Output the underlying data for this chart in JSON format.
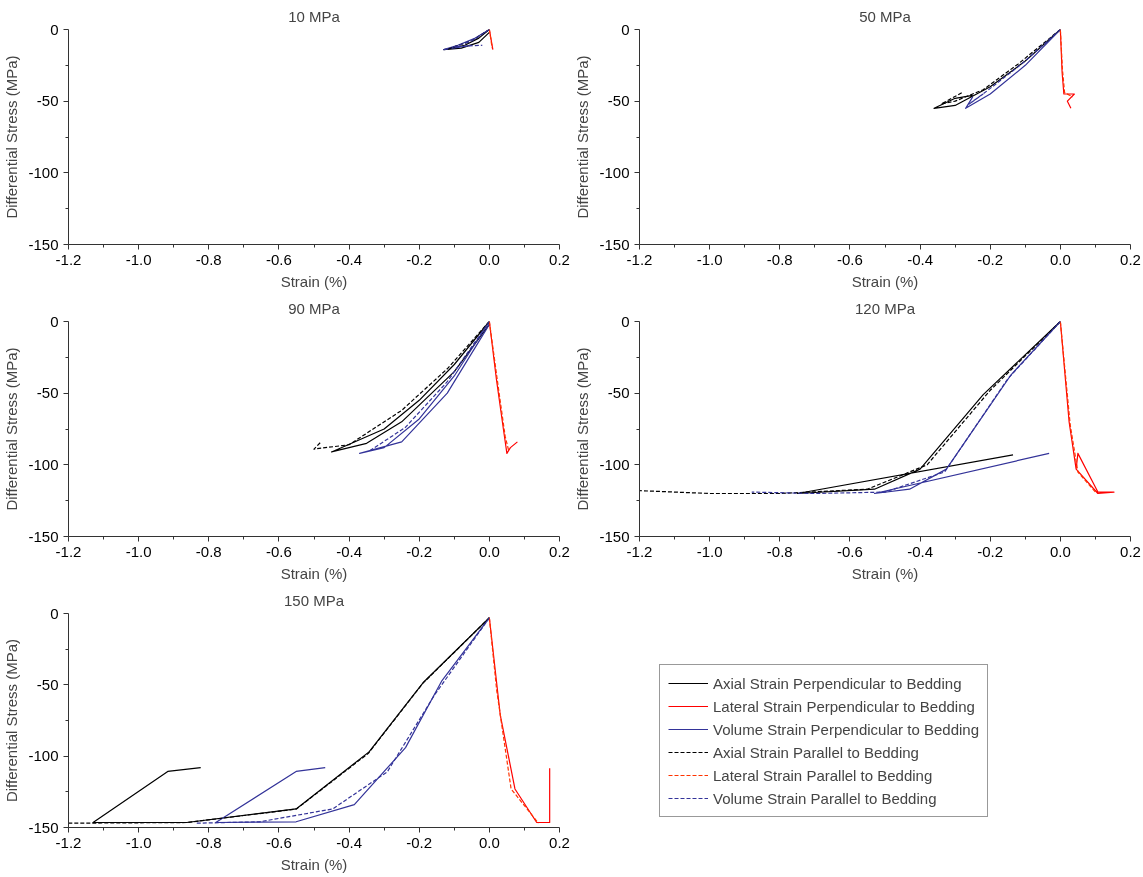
{
  "chart_data": [
    {
      "type": "line",
      "title": "10 MPa",
      "xlabel": "Strain (%)",
      "ylabel": "Differential Stress (MPa)",
      "xlim": [
        -1.2,
        0.2
      ],
      "ylim": [
        -150,
        0
      ],
      "xticks": [
        {
          "value": -1.2,
          "label": "-1.2"
        },
        {
          "value": -1.1,
          "label": null
        },
        {
          "value": -1.0,
          "label": "-1.0"
        },
        {
          "value": -0.9,
          "label": null
        },
        {
          "value": -0.8,
          "label": "-0.8"
        },
        {
          "value": -0.7,
          "label": null
        },
        {
          "value": -0.6,
          "label": "-0.6"
        },
        {
          "value": -0.5,
          "label": null
        },
        {
          "value": -0.4,
          "label": "-0.4"
        },
        {
          "value": -0.3,
          "label": null
        },
        {
          "value": -0.2,
          "label": "-0.2"
        },
        {
          "value": -0.1,
          "label": null
        },
        {
          "value": 0.0,
          "label": "0.0"
        },
        {
          "value": 0.1,
          "label": null
        },
        {
          "value": 0.2,
          "label": "0.2"
        }
      ],
      "yticks": [
        0,
        {
          "value": -25,
          "label": null
        },
        -50,
        {
          "value": -75,
          "label": null
        },
        -100,
        {
          "value": -125,
          "label": null
        },
        -150
      ],
      "grid": false,
      "marker": "none",
      "legend": false,
      "series": [
        {
          "color": "#000000",
          "line_style": "solid",
          "x": [
            0,
            -0.03,
            -0.07,
            -0.13,
            -0.08,
            -0.03,
            0
          ],
          "values": [
            0,
            -6,
            -11,
            -14,
            -13,
            -9,
            -2
          ]
        },
        {
          "color": "#ff0000",
          "line_style": "solid",
          "x": [
            0,
            0.01
          ],
          "values": [
            0,
            -14
          ]
        },
        {
          "color": "#333399",
          "line_style": "solid",
          "x": [
            0,
            -0.04,
            -0.09,
            -0.13,
            -0.05
          ],
          "values": [
            0,
            -6,
            -11,
            -14,
            -11
          ]
        },
        {
          "color": "#000000",
          "line_style": "dashed",
          "x": [
            0,
            -0.05,
            -0.1,
            -0.12
          ],
          "values": [
            0,
            -8,
            -12,
            -14
          ]
        },
        {
          "color": "#ff3300",
          "line_style": "dashed",
          "x": [
            0,
            0.008
          ],
          "values": [
            0,
            -13
          ]
        },
        {
          "color": "#333399",
          "line_style": "dashed",
          "x": [
            0,
            -0.05,
            -0.1,
            -0.02
          ],
          "values": [
            0,
            -8,
            -12,
            -11
          ]
        }
      ]
    },
    {
      "type": "line",
      "title": "50 MPa",
      "xlabel": "Strain (%)",
      "ylabel": "Differential Stress (MPa)",
      "xlim": [
        -1.2,
        0.2
      ],
      "ylim": [
        -150,
        0
      ],
      "xticks": [
        {
          "value": -1.2,
          "label": "-1.2"
        },
        {
          "value": -1.1,
          "label": null
        },
        {
          "value": -1.0,
          "label": "-1.0"
        },
        {
          "value": -0.9,
          "label": null
        },
        {
          "value": -0.8,
          "label": "-0.8"
        },
        {
          "value": -0.7,
          "label": null
        },
        {
          "value": -0.6,
          "label": "-0.6"
        },
        {
          "value": -0.5,
          "label": null
        },
        {
          "value": -0.4,
          "label": "-0.4"
        },
        {
          "value": -0.3,
          "label": null
        },
        {
          "value": -0.2,
          "label": "-0.2"
        },
        {
          "value": -0.1,
          "label": null
        },
        {
          "value": 0.0,
          "label": "0.0"
        },
        {
          "value": 0.1,
          "label": null
        },
        {
          "value": 0.2,
          "label": "0.2"
        }
      ],
      "yticks": [
        0,
        {
          "value": -25,
          "label": null
        },
        -50,
        {
          "value": -75,
          "label": null
        },
        -100,
        {
          "value": -125,
          "label": null
        },
        -150
      ],
      "grid": false,
      "marker": "none",
      "legend": false,
      "series": [
        {
          "color": "#000000",
          "line_style": "solid",
          "x": [
            0,
            -0.1,
            -0.2,
            -0.3,
            -0.36,
            -0.3,
            -0.25
          ],
          "values": [
            0,
            -22,
            -40,
            -53,
            -55,
            -48,
            -46
          ]
        },
        {
          "color": "#ff0000",
          "line_style": "solid",
          "x": [
            0,
            0.005,
            0.01,
            0.04,
            0.02,
            0.03
          ],
          "values": [
            0,
            -30,
            -45,
            -45,
            -50,
            -55
          ]
        },
        {
          "color": "#333399",
          "line_style": "solid",
          "x": [
            0,
            -0.1,
            -0.2,
            -0.27,
            -0.25
          ],
          "values": [
            0,
            -25,
            -45,
            -55,
            -47
          ]
        },
        {
          "color": "#000000",
          "line_style": "dashed",
          "x": [
            0,
            -0.12,
            -0.22,
            -0.3,
            -0.34,
            -0.28
          ],
          "values": [
            0,
            -24,
            -42,
            -50,
            -52,
            -44
          ]
        },
        {
          "color": "#ff3300",
          "line_style": "dashed",
          "x": [
            0,
            0.006,
            0.012,
            0.035
          ],
          "values": [
            0,
            -28,
            -44,
            -47
          ]
        },
        {
          "color": "#333399",
          "line_style": "dashed",
          "x": [
            0,
            -0.11,
            -0.21,
            -0.26,
            -0.22
          ],
          "values": [
            0,
            -24,
            -43,
            -52,
            -45
          ]
        }
      ]
    },
    {
      "type": "line",
      "title": "90 MPa",
      "xlabel": "Strain (%)",
      "ylabel": "Differential Stress (MPa)",
      "xlim": [
        -1.2,
        0.2
      ],
      "ylim": [
        -150,
        0
      ],
      "xticks": [
        {
          "value": -1.2,
          "label": "-1.2"
        },
        {
          "value": -1.1,
          "label": null
        },
        {
          "value": -1.0,
          "label": "-1.0"
        },
        {
          "value": -0.9,
          "label": null
        },
        {
          "value": -0.8,
          "label": "-0.8"
        },
        {
          "value": -0.7,
          "label": null
        },
        {
          "value": -0.6,
          "label": "-0.6"
        },
        {
          "value": -0.5,
          "label": null
        },
        {
          "value": -0.4,
          "label": "-0.4"
        },
        {
          "value": -0.3,
          "label": null
        },
        {
          "value": -0.2,
          "label": "-0.2"
        },
        {
          "value": -0.1,
          "label": null
        },
        {
          "value": 0.0,
          "label": "0.0"
        },
        {
          "value": 0.1,
          "label": null
        },
        {
          "value": 0.2,
          "label": "0.2"
        }
      ],
      "yticks": [
        0,
        {
          "value": -25,
          "label": null
        },
        -50,
        {
          "value": -75,
          "label": null
        },
        -100,
        {
          "value": -125,
          "label": null
        },
        -150
      ],
      "grid": false,
      "marker": "none",
      "legend": false,
      "series": [
        {
          "color": "#000000",
          "line_style": "solid",
          "x": [
            0,
            -0.1,
            -0.2,
            -0.3,
            -0.45,
            -0.35,
            -0.25,
            -0.1,
            0
          ],
          "values": [
            0,
            -30,
            -55,
            -75,
            -91,
            -85,
            -70,
            -35,
            -2
          ]
        },
        {
          "color": "#ff0000",
          "line_style": "solid",
          "x": [
            0,
            0.02,
            0.04,
            0.05,
            0.06,
            0.08
          ],
          "values": [
            0,
            -40,
            -75,
            -92,
            -88,
            -84
          ]
        },
        {
          "color": "#333399",
          "line_style": "solid",
          "x": [
            0,
            -0.1,
            -0.2,
            -0.3,
            -0.37,
            -0.25,
            -0.12,
            0
          ],
          "values": [
            0,
            -38,
            -68,
            -88,
            -92,
            -84,
            -50,
            -2
          ]
        },
        {
          "color": "#000000",
          "line_style": "dashed",
          "x": [
            0,
            -0.12,
            -0.25,
            -0.4,
            -0.5,
            -0.48
          ],
          "values": [
            0,
            -33,
            -62,
            -86,
            -89,
            -84
          ]
        },
        {
          "color": "#ff3300",
          "line_style": "dashed",
          "x": [
            0,
            0.025,
            0.045,
            0.055
          ],
          "values": [
            0,
            -45,
            -80,
            -90
          ]
        },
        {
          "color": "#333399",
          "line_style": "dashed",
          "x": [
            0,
            -0.12,
            -0.24,
            -0.34
          ],
          "values": [
            0,
            -42,
            -74,
            -90
          ]
        }
      ]
    },
    {
      "type": "line",
      "title": "120 MPa",
      "xlabel": "Strain (%)",
      "ylabel": "Differential Stress (MPa)",
      "xlim": [
        -1.2,
        0.2
      ],
      "ylim": [
        -150,
        0
      ],
      "xticks": [
        {
          "value": -1.2,
          "label": "-1.2"
        },
        {
          "value": -1.1,
          "label": null
        },
        {
          "value": -1.0,
          "label": "-1.0"
        },
        {
          "value": -0.9,
          "label": null
        },
        {
          "value": -0.8,
          "label": "-0.8"
        },
        {
          "value": -0.7,
          "label": null
        },
        {
          "value": -0.6,
          "label": "-0.6"
        },
        {
          "value": -0.5,
          "label": null
        },
        {
          "value": -0.4,
          "label": "-0.4"
        },
        {
          "value": -0.3,
          "label": null
        },
        {
          "value": -0.2,
          "label": "-0.2"
        },
        {
          "value": -0.1,
          "label": null
        },
        {
          "value": 0.0,
          "label": "0.0"
        },
        {
          "value": 0.1,
          "label": null
        },
        {
          "value": 0.2,
          "label": "0.2"
        }
      ],
      "yticks": [
        0,
        {
          "value": -25,
          "label": null
        },
        -50,
        {
          "value": -75,
          "label": null
        },
        -100,
        {
          "value": -125,
          "label": null
        },
        -150
      ],
      "grid": false,
      "marker": "none",
      "legend": false,
      "series": [
        {
          "color": "#000000",
          "line_style": "solid",
          "x": [
            0,
            -0.22,
            -0.4,
            -0.53,
            -0.75,
            -0.135
          ],
          "values": [
            0,
            -51,
            -103,
            -117,
            -120,
            -93
          ]
        },
        {
          "color": "#ff0000",
          "line_style": "solid",
          "x": [
            0,
            0.025,
            0.045,
            0.107,
            0.153,
            0.107,
            0.05,
            0.045
          ],
          "values": [
            0,
            -70,
            -103,
            -120,
            -119,
            -119,
            -92,
            -103
          ]
        },
        {
          "color": "#333399",
          "line_style": "solid",
          "x": [
            0,
            -0.14,
            -0.325,
            -0.43,
            -0.53,
            -0.032
          ],
          "values": [
            0,
            -37,
            -103,
            -117,
            -120,
            -92
          ]
        },
        {
          "color": "#000000",
          "line_style": "dashed",
          "x": [
            0,
            -0.2,
            -0.38,
            -0.55,
            -0.8,
            -1.0,
            -1.2
          ],
          "values": [
            0,
            -48,
            -100,
            -117,
            -120,
            -120,
            -118
          ]
        },
        {
          "color": "#ff3300",
          "line_style": "dashed",
          "x": [
            0,
            0.028,
            0.05,
            0.1
          ],
          "values": [
            0,
            -72,
            -105,
            -119
          ]
        },
        {
          "color": "#333399",
          "line_style": "dashed",
          "x": [
            0,
            -0.15,
            -0.33,
            -0.5,
            -0.7,
            -0.88
          ],
          "values": [
            0,
            -40,
            -105,
            -119,
            -120,
            -119
          ]
        }
      ]
    },
    {
      "type": "line",
      "title": "150 MPa",
      "xlabel": "Strain (%)",
      "ylabel": "Differential Stress (MPa)",
      "xlim": [
        -1.2,
        0.2
      ],
      "ylim": [
        -150,
        0
      ],
      "xticks": [
        {
          "value": -1.2,
          "label": "-1.2"
        },
        {
          "value": -1.1,
          "label": null
        },
        {
          "value": -1.0,
          "label": "-1.0"
        },
        {
          "value": -0.9,
          "label": null
        },
        {
          "value": -0.8,
          "label": "-0.8"
        },
        {
          "value": -0.7,
          "label": null
        },
        {
          "value": -0.6,
          "label": "-0.6"
        },
        {
          "value": -0.5,
          "label": null
        },
        {
          "value": -0.4,
          "label": "-0.4"
        },
        {
          "value": -0.3,
          "label": null
        },
        {
          "value": -0.2,
          "label": "-0.2"
        },
        {
          "value": -0.1,
          "label": null
        },
        {
          "value": 0.0,
          "label": "0.0"
        },
        {
          "value": 0.1,
          "label": null
        },
        {
          "value": 0.2,
          "label": "0.2"
        }
      ],
      "yticks": [
        0,
        {
          "value": -25,
          "label": null
        },
        -50,
        {
          "value": -75,
          "label": null
        },
        -100,
        {
          "value": -125,
          "label": null
        },
        -150
      ],
      "grid": false,
      "marker": "none",
      "legend": "right",
      "series": [
        {
          "name": "Axial Strain Perpendicular to Bedding",
          "color": "#000000",
          "line_style": "solid",
          "x": [
            0,
            -0.187,
            -0.343,
            -0.551,
            -0.863,
            -1.13,
            -0.917,
            -0.823
          ],
          "values": [
            -3,
            -48,
            -97,
            -137,
            -146.5,
            -146.5,
            -110.7,
            -108
          ]
        },
        {
          "name": "Lateral Strain Perpendicular to Bedding",
          "color": "#ff0000",
          "line_style": "solid",
          "x": [
            0,
            0.031,
            0.073,
            0.135,
            0.172,
            0.172
          ],
          "values": [
            -3,
            -71,
            -123,
            -146.5,
            -146.5,
            -108.4
          ]
        },
        {
          "name": "Volume Strain Perpendicular to Bedding",
          "color": "#333399",
          "line_style": "solid",
          "x": [
            0,
            -0.135,
            -0.239,
            -0.385,
            -0.551,
            -0.78,
            -0.551,
            -0.468
          ],
          "values": [
            -3,
            -47,
            -94,
            -134,
            -146,
            -146.5,
            -110.7,
            -108
          ]
        },
        {
          "name": "Axial Strain Parallel to Bedding",
          "color": "#000000",
          "line_style": "dashed",
          "x": [
            0,
            -0.19,
            -0.345,
            -0.55,
            -0.86,
            -1.2
          ],
          "values": [
            -3,
            -49,
            -98,
            -137,
            -146.5,
            -147
          ]
        },
        {
          "name": "Lateral Strain Parallel to Bedding",
          "color": "#ff3300",
          "line_style": "dashed",
          "x": [
            0,
            0.021,
            0.062,
            0.14
          ],
          "values": [
            -3,
            -54,
            -123,
            -147
          ]
        },
        {
          "name": "Volume Strain Parallel to Bedding",
          "color": "#333399",
          "line_style": "dashed",
          "x": [
            0,
            -0.156,
            -0.291,
            -0.447,
            -0.655,
            -0.84
          ],
          "values": [
            -3,
            -57,
            -111,
            -137,
            -146,
            -147
          ]
        }
      ]
    }
  ]
}
